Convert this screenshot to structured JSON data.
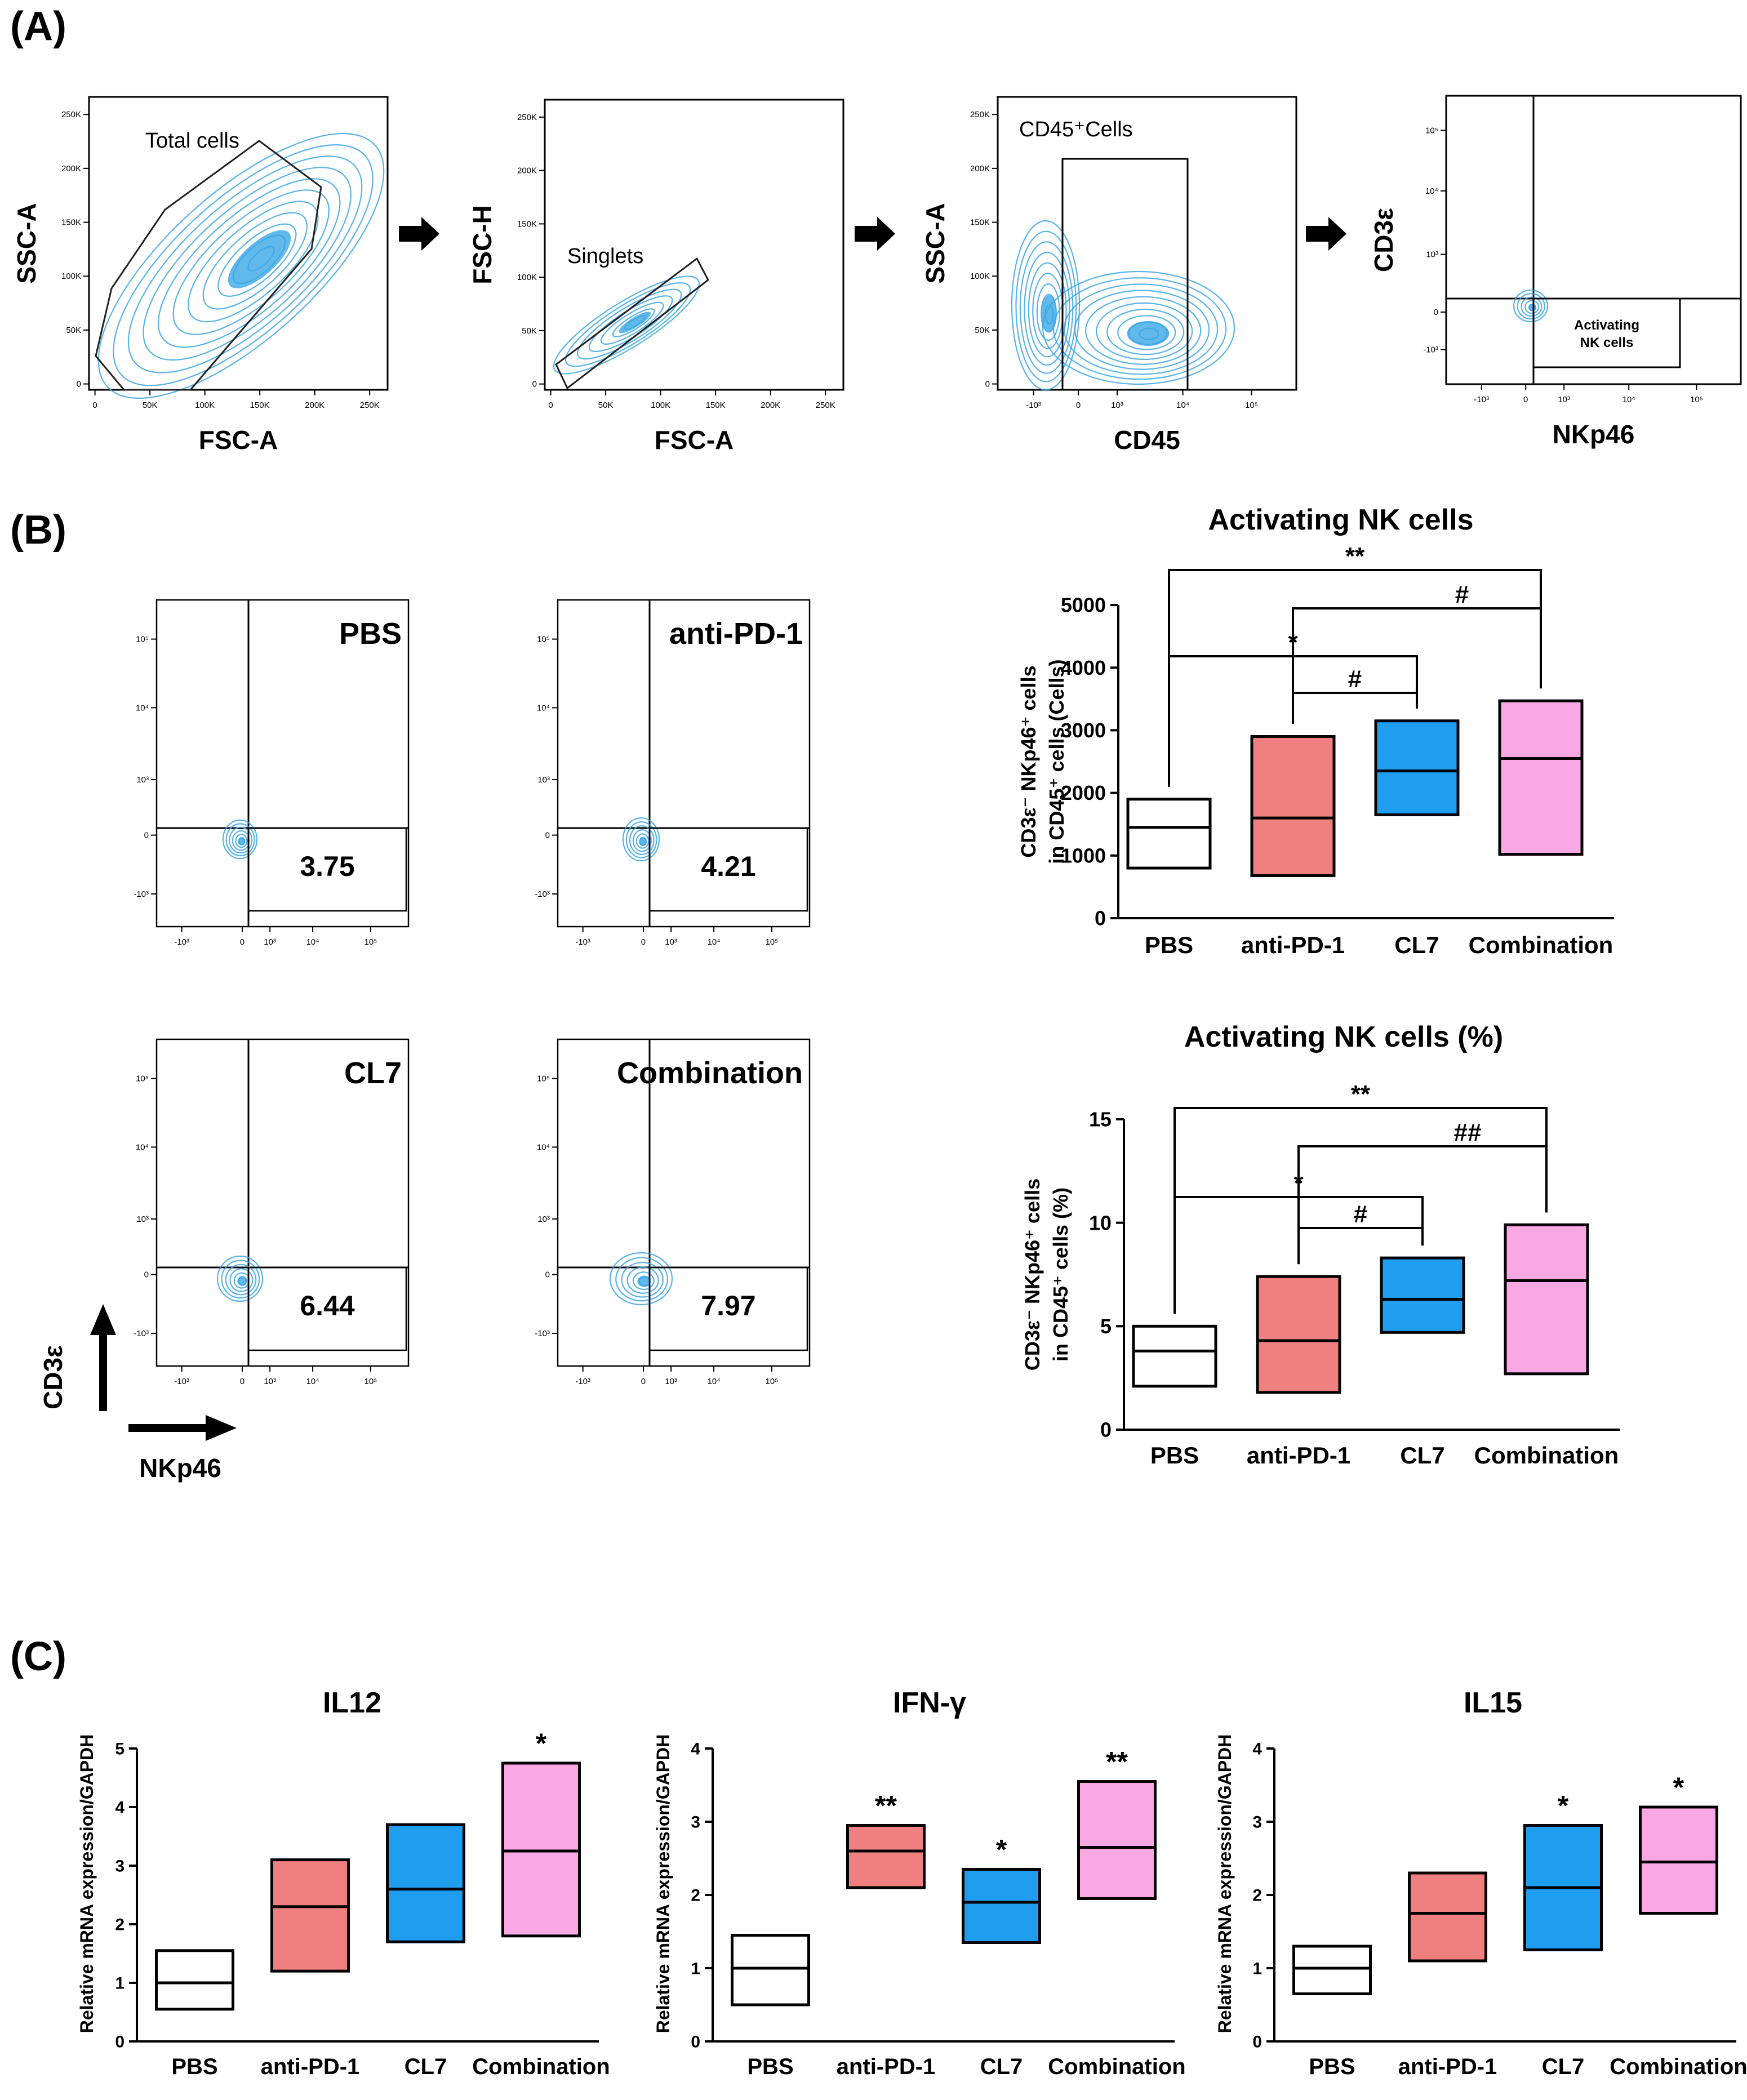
{
  "colors": {
    "pbs": "#ffffff",
    "anti_pd1": "#f07f7f",
    "cl7": "#1f9ef0",
    "combination": "#f9a8e4",
    "contour": "#3aa6e6",
    "line": "#000000"
  },
  "panels": {
    "A": "(A)",
    "B": "(B)",
    "C": "(C)"
  },
  "panel_a": {
    "plots": [
      {
        "xlabel": "FSC-A",
        "ylabel": "SSC-A",
        "gate_label": "Total cells",
        "xticks": [
          "0",
          "50K",
          "100K",
          "150K",
          "200K",
          "250K"
        ],
        "yticks": [
          "0",
          "50K",
          "100K",
          "150K",
          "200K",
          "250K"
        ]
      },
      {
        "xlabel": "FSC-A",
        "ylabel": "FSC-H",
        "gate_label": "Singlets",
        "xticks": [
          "0",
          "50K",
          "100K",
          "150K",
          "200K",
          "250K"
        ],
        "yticks": [
          "0",
          "50K",
          "100K",
          "150K",
          "200K",
          "250K"
        ]
      },
      {
        "xlabel": "CD45",
        "ylabel": "SSC-A",
        "gate_label": "CD45⁺Cells",
        "xticks": [
          "-10³",
          "0",
          "10³",
          "10⁴",
          "10⁵"
        ],
        "yticks": [
          "0",
          "50K",
          "100K",
          "150K",
          "200K",
          "250K"
        ]
      },
      {
        "xlabel": "NKp46",
        "ylabel": "CD3ε",
        "gate_label_line1": "Activating",
        "gate_label_line2": "NK cells",
        "xticks": [
          "-10³",
          "0",
          "10³",
          "10⁴",
          "10⁵"
        ],
        "yticks": [
          "-10³",
          "0",
          "10³",
          "10⁴",
          "10⁵"
        ]
      }
    ]
  },
  "panel_b": {
    "flow_plots": [
      {
        "group": "PBS",
        "value": "3.75"
      },
      {
        "group": "anti-PD-1",
        "value": "4.21"
      },
      {
        "group": "CL7",
        "value": "6.44"
      },
      {
        "group": "Combination",
        "value": "7.97"
      }
    ],
    "flow_xticks": [
      "-10³",
      "0",
      "10³",
      "10⁴",
      "10⁵"
    ],
    "flow_yticks": [
      "-10³",
      "0",
      "10³",
      "10⁴",
      "10⁵"
    ],
    "axis_y_arrow_label": "CD3ε",
    "axis_x_arrow_label": "NKp46"
  },
  "chart_data": [
    {
      "type": "box",
      "title": "Activating NK cells",
      "ylabel_line1": "CD3ε⁻ NKp46⁺ cells",
      "ylabel_line2": "in CD45⁺ cells (Cells)",
      "categories": [
        "PBS",
        "anti-PD-1",
        "CL7",
        "Combination"
      ],
      "boxes": [
        {
          "min": 800,
          "mid": 1450,
          "max": 1900
        },
        {
          "min": 680,
          "mid": 1600,
          "max": 2900
        },
        {
          "min": 1650,
          "mid": 2350,
          "max": 3150
        },
        {
          "min": 1020,
          "mid": 2550,
          "max": 3470
        }
      ],
      "ylim": [
        0,
        5000
      ],
      "yticks": [
        "0",
        "1000",
        "2000",
        "3000",
        "4000",
        "5000"
      ],
      "comparisons": [
        {
          "from": 0,
          "to": 3,
          "label": "**"
        },
        {
          "from": 1,
          "to": 3,
          "label": "#"
        },
        {
          "from": 0,
          "to": 2,
          "label": "*"
        },
        {
          "from": 1,
          "to": 2,
          "label": "#"
        }
      ]
    },
    {
      "type": "box",
      "title": "Activating NK cells (%)",
      "ylabel_line1": "CD3ε⁻ NKp46⁺ cells",
      "ylabel_line2": "in CD45⁺ cells (%)",
      "categories": [
        "PBS",
        "anti-PD-1",
        "CL7",
        "Combination"
      ],
      "boxes": [
        {
          "min": 2.1,
          "mid": 3.8,
          "max": 5.0
        },
        {
          "min": 1.8,
          "mid": 4.3,
          "max": 7.4
        },
        {
          "min": 4.7,
          "mid": 6.3,
          "max": 8.3
        },
        {
          "min": 2.7,
          "mid": 7.2,
          "max": 9.9
        }
      ],
      "ylim": [
        0,
        15
      ],
      "yticks": [
        "0",
        "5",
        "10",
        "15"
      ],
      "comparisons": [
        {
          "from": 0,
          "to": 3,
          "label": "**"
        },
        {
          "from": 1,
          "to": 3,
          "label": "##"
        },
        {
          "from": 0,
          "to": 2,
          "label": "*"
        },
        {
          "from": 1,
          "to": 2,
          "label": "#"
        }
      ]
    },
    {
      "type": "box",
      "title": "IL12",
      "ylabel": "Relative mRNA expression/GAPDH",
      "categories": [
        "PBS",
        "anti-PD-1",
        "CL7",
        "Combination"
      ],
      "boxes": [
        {
          "min": 0.55,
          "mid": 1.0,
          "max": 1.55
        },
        {
          "min": 1.2,
          "mid": 2.3,
          "max": 3.1
        },
        {
          "min": 1.7,
          "mid": 2.6,
          "max": 3.7
        },
        {
          "min": 1.8,
          "mid": 3.25,
          "max": 4.75
        }
      ],
      "ylim": [
        0,
        5
      ],
      "yticks": [
        "0",
        "1",
        "2",
        "3",
        "4",
        "5"
      ],
      "stars": [
        "",
        "",
        "",
        "*"
      ]
    },
    {
      "type": "box",
      "title": "IFN-γ",
      "ylabel": "Relative mRNA expression/GAPDH",
      "categories": [
        "PBS",
        "anti-PD-1",
        "CL7",
        "Combination"
      ],
      "boxes": [
        {
          "min": 0.5,
          "mid": 1.0,
          "max": 1.45
        },
        {
          "min": 2.1,
          "mid": 2.6,
          "max": 2.95
        },
        {
          "min": 1.35,
          "mid": 1.9,
          "max": 2.35
        },
        {
          "min": 1.95,
          "mid": 2.65,
          "max": 3.55
        }
      ],
      "ylim": [
        0,
        4
      ],
      "yticks": [
        "0",
        "1",
        "2",
        "3",
        "4"
      ],
      "stars": [
        "",
        "**",
        "*",
        "**"
      ]
    },
    {
      "type": "box",
      "title": "IL15",
      "ylabel": "Relative mRNA expression/GAPDH",
      "categories": [
        "PBS",
        "anti-PD-1",
        "CL7",
        "Combination"
      ],
      "boxes": [
        {
          "min": 0.65,
          "mid": 1.0,
          "max": 1.3
        },
        {
          "min": 1.1,
          "mid": 1.75,
          "max": 2.3
        },
        {
          "min": 1.25,
          "mid": 2.1,
          "max": 2.95
        },
        {
          "min": 1.75,
          "mid": 2.45,
          "max": 3.2
        }
      ],
      "ylim": [
        0,
        4
      ],
      "yticks": [
        "0",
        "1",
        "2",
        "3",
        "4"
      ],
      "stars": [
        "",
        "",
        "*",
        "*"
      ]
    }
  ]
}
